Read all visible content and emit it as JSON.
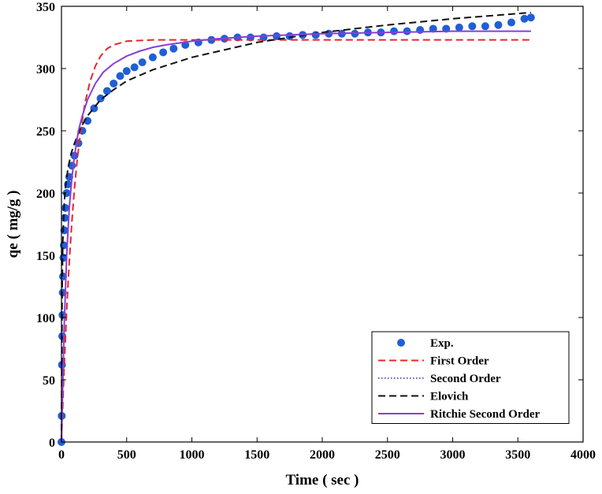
{
  "chart_data": {
    "type": "line",
    "title": "",
    "xlabel": "Time ( sec )",
    "ylabel": "qe ( mg/g )",
    "xlim": [
      0,
      4000
    ],
    "ylim": [
      0,
      350
    ],
    "xticks": [
      0,
      500,
      1000,
      1500,
      2000,
      2500,
      3000,
      3500,
      4000
    ],
    "yticks": [
      0,
      50,
      100,
      150,
      200,
      250,
      300,
      350
    ],
    "grid": false,
    "legend_position": "bottom-right",
    "series": [
      {
        "name": "Exp.",
        "kind": "markers",
        "color": "#1f5fd6",
        "x": [
          0,
          2,
          4,
          6,
          8,
          10,
          12,
          15,
          18,
          22,
          26,
          30,
          40,
          50,
          60,
          80,
          100,
          130,
          160,
          200,
          250,
          300,
          350,
          400,
          450,
          500,
          560,
          620,
          700,
          780,
          860,
          950,
          1050,
          1150,
          1250,
          1350,
          1450,
          1550,
          1650,
          1750,
          1850,
          1950,
          2050,
          2150,
          2250,
          2350,
          2450,
          2550,
          2650,
          2750,
          2850,
          2950,
          3050,
          3150,
          3250,
          3350,
          3450,
          3550,
          3600
        ],
        "y": [
          0,
          21,
          62,
          85,
          102,
          120,
          133,
          148,
          158,
          170,
          180,
          188,
          200,
          207,
          213,
          222,
          230,
          240,
          250,
          258,
          268,
          276,
          282,
          288,
          294,
          298,
          301,
          305,
          309,
          313,
          316,
          319,
          321,
          323,
          324,
          325,
          325,
          325,
          326,
          326,
          327,
          327,
          328,
          328,
          328,
          329,
          329,
          330,
          330,
          331,
          332,
          332,
          333,
          334,
          334,
          335,
          337,
          340,
          341
        ]
      },
      {
        "name": "First Order",
        "kind": "line",
        "dash": "dashed",
        "color": "#e8262a",
        "x": [
          0,
          20,
          40,
          60,
          80,
          100,
          120,
          150,
          180,
          220,
          260,
          300,
          350,
          400,
          500,
          700,
          1000,
          2000,
          3000,
          3600
        ],
        "y": [
          0,
          58,
          106,
          145,
          177,
          204,
          226,
          252,
          272,
          290,
          302,
          310,
          316,
          319,
          322,
          323,
          323,
          323,
          323,
          323
        ]
      },
      {
        "name": "Second Order",
        "kind": "line",
        "dash": "dotted",
        "color": "#2a2ab8",
        "x": [
          0,
          20,
          40,
          60,
          80,
          100,
          130,
          160,
          200,
          260,
          320,
          400,
          500,
          600,
          700,
          800,
          1000,
          1200,
          1500,
          2000,
          2500,
          3000,
          3600
        ],
        "y": [
          0,
          90,
          150,
          188,
          212,
          230,
          250,
          262,
          275,
          288,
          297,
          304,
          310,
          314,
          317,
          319,
          322,
          324,
          326,
          328,
          329,
          330,
          330
        ]
      },
      {
        "name": "Elovich",
        "kind": "line",
        "dash": "dashed",
        "color": "#111111",
        "x": [
          0,
          5,
          10,
          20,
          30,
          50,
          75,
          100,
          150,
          200,
          300,
          400,
          500,
          700,
          1000,
          1500,
          2000,
          2500,
          3000,
          3600
        ],
        "y": [
          0,
          120,
          160,
          190,
          204,
          220,
          232,
          240,
          253,
          262,
          275,
          283,
          290,
          299,
          309,
          321,
          329,
          335,
          340,
          345
        ]
      },
      {
        "name": "Ritchie Second Order",
        "kind": "line",
        "dash": "solid",
        "color": "#8a3fd4",
        "x": [
          0,
          20,
          40,
          60,
          80,
          100,
          130,
          160,
          200,
          260,
          320,
          400,
          500,
          600,
          700,
          800,
          1000,
          1200,
          1500,
          2000,
          2500,
          3000,
          3600
        ],
        "y": [
          0,
          90,
          150,
          188,
          212,
          230,
          250,
          262,
          275,
          288,
          297,
          304,
          310,
          314,
          317,
          319,
          322,
          324,
          326,
          328,
          329,
          330,
          330
        ]
      }
    ]
  }
}
